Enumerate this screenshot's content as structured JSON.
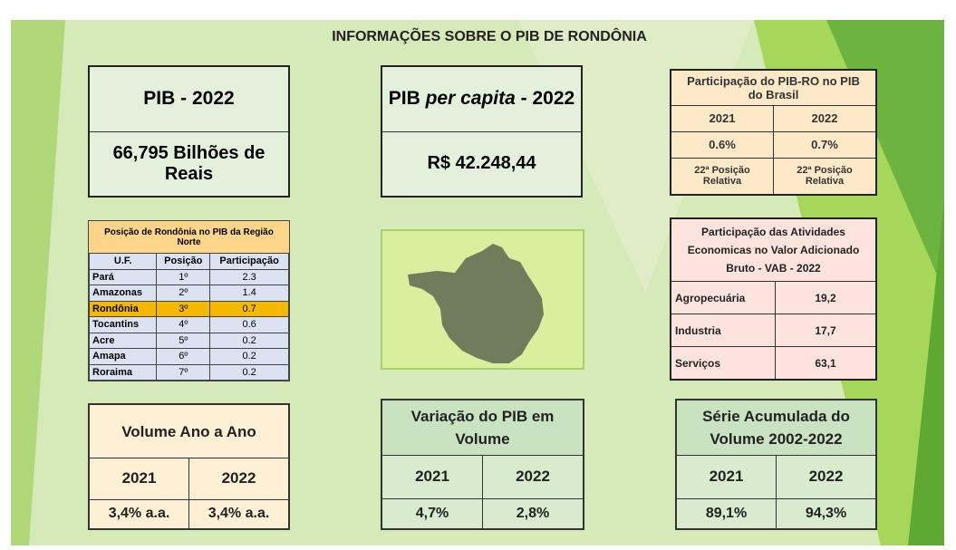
{
  "title": "INFORMAÇÕES SOBRE O PIB DE RONDÔNIA",
  "pib": {
    "label": "PIB - 2022",
    "value": "66,795 Bilhões de Reais"
  },
  "per_capita": {
    "label_parts": [
      "PIB ",
      "per capita",
      " - 2022"
    ],
    "value": "R$ 42.248,44"
  },
  "participacao_brasil": {
    "title": "Participação do PIB-RO no PIB do Brasil",
    "years": [
      "2021",
      "2022"
    ],
    "values": [
      "0.6%",
      "0.7%"
    ],
    "positions": [
      "22ª Posição Relativa",
      "22ª Posição Relativa"
    ]
  },
  "norte": {
    "title": "Posição de Rondônia no PIB da Região Norte",
    "headers": [
      "U.F.",
      "Posição",
      "Participação"
    ],
    "rows": [
      [
        "Pará",
        "1º",
        "2.3"
      ],
      [
        "Amazonas",
        "2º",
        "1.4"
      ],
      [
        "Rondônia",
        "3º",
        "0.7"
      ],
      [
        "Tocantins",
        "4º",
        "0.6"
      ],
      [
        "Acre",
        "5º",
        "0.2"
      ],
      [
        "Amapa",
        "6º",
        "0.2"
      ],
      [
        "Roraima",
        "7º",
        "0.2"
      ]
    ]
  },
  "vab": {
    "title": "Participação das Atividades Economicas no Valor Adicionado Bruto - VAB - 2022",
    "rows": [
      [
        "Agropecuária",
        "19,2"
      ],
      [
        "Industria",
        "17,7"
      ],
      [
        "Serviços",
        "63,1"
      ]
    ]
  },
  "volume": {
    "title": "Volume  Ano a Ano",
    "years": [
      "2021",
      "2022"
    ],
    "values": [
      "3,4% a.a.",
      "3,4% a.a."
    ]
  },
  "variacao": {
    "title": "Variação do PIB em Volume",
    "years": [
      "2021",
      "2022"
    ],
    "values": [
      "4,7%",
      "2,8%"
    ]
  },
  "serie": {
    "title": "Série Acumulada do Volume 2002-2022",
    "years": [
      "2021",
      "2022"
    ],
    "values": [
      "89,1%",
      "94,3%"
    ]
  }
}
